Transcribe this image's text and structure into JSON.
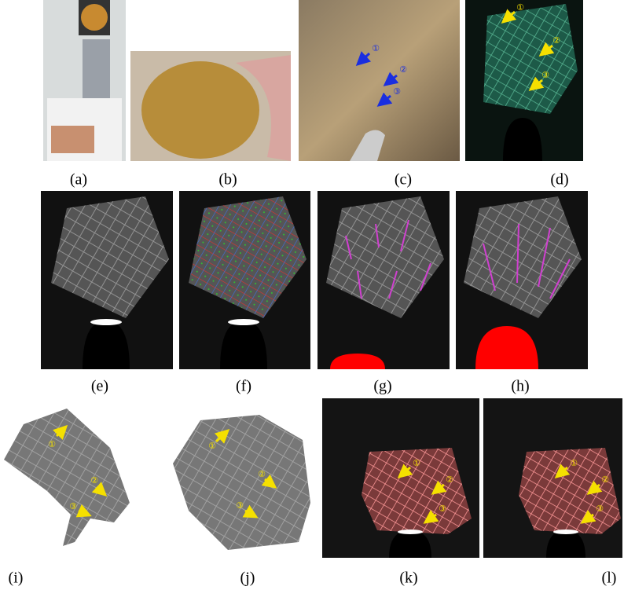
{
  "captions": [
    "(a)",
    "(b)",
    "(c)",
    "(d)",
    "(e)",
    "(f)",
    "(g)",
    "(h)",
    "(i)",
    "(j)",
    "(k)",
    "(l)"
  ],
  "markers": [
    "①",
    "②",
    "③"
  ]
}
